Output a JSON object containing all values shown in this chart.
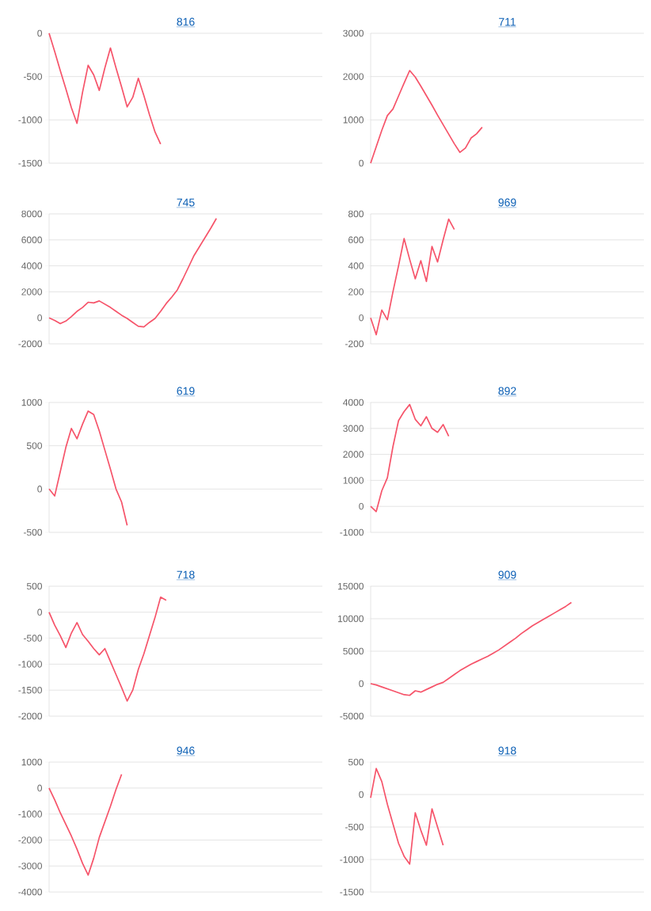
{
  "chart_data": [
    {
      "type": "line",
      "title": "816",
      "color": "#f6546a",
      "grid": "y",
      "ylim": [
        -1500,
        0
      ],
      "yticks": [
        -1500,
        -1000,
        -500,
        0
      ],
      "categories": [
        null,
        null,
        null,
        null,
        null,
        null,
        null,
        null,
        null,
        null,
        null,
        null,
        null,
        null,
        null,
        null,
        null,
        null,
        null,
        null,
        null,
        null,
        null,
        null,
        null,
        null,
        null,
        null,
        null,
        null,
        null,
        null,
        null,
        null,
        null,
        null,
        null,
        null,
        null,
        null,
        null,
        null,
        null,
        null,
        null,
        null,
        null,
        null,
        null,
        null
      ],
      "values": [
        0,
        -210,
        -430,
        -640,
        -860,
        -1040,
        -680,
        -370,
        -480,
        -660,
        -400,
        -170,
        -400,
        -620,
        -850,
        -740,
        -520,
        -720,
        -940,
        -1140,
        -1280,
        null,
        null,
        null,
        null,
        null,
        null,
        null,
        null,
        null,
        null,
        null,
        null,
        null,
        null,
        null,
        null,
        null,
        null,
        null,
        null,
        null,
        null,
        null,
        null,
        null,
        null,
        null,
        null,
        null
      ]
    },
    {
      "type": "line",
      "title": "711",
      "color": "#f6546a",
      "grid": "y",
      "ylim": [
        0,
        3000
      ],
      "yticks": [
        0,
        1000,
        2000,
        3000
      ],
      "categories": [
        null,
        null,
        null,
        null,
        null,
        null,
        null,
        null,
        null,
        null,
        null,
        null,
        null,
        null,
        null,
        null,
        null,
        null,
        null,
        null,
        null,
        null,
        null,
        null,
        null,
        null,
        null,
        null,
        null,
        null,
        null,
        null,
        null,
        null,
        null,
        null,
        null,
        null,
        null,
        null,
        null,
        null,
        null,
        null,
        null,
        null,
        null,
        null,
        null,
        null
      ],
      "values": [
        0,
        380,
        760,
        1100,
        1250,
        1550,
        1850,
        2140,
        1990,
        1780,
        1560,
        1340,
        1110,
        890,
        670,
        450,
        250,
        350,
        580,
        680,
        830,
        null,
        null,
        null,
        null,
        null,
        null,
        null,
        null,
        null,
        null,
        null,
        null,
        null,
        null,
        null,
        null,
        null,
        null,
        null,
        null,
        null,
        null,
        null,
        null,
        null,
        null,
        null,
        null,
        null
      ]
    },
    {
      "type": "line",
      "title": "745",
      "color": "#f6546a",
      "grid": "y",
      "ylim": [
        -2000,
        8000
      ],
      "yticks": [
        -2000,
        0,
        2000,
        4000,
        6000,
        8000
      ],
      "categories": [
        null,
        null,
        null,
        null,
        null,
        null,
        null,
        null,
        null,
        null,
        null,
        null,
        null,
        null,
        null,
        null,
        null,
        null,
        null,
        null,
        null,
        null,
        null,
        null,
        null,
        null,
        null,
        null,
        null,
        null,
        null,
        null,
        null,
        null,
        null,
        null,
        null,
        null,
        null,
        null,
        null,
        null,
        null,
        null,
        null,
        null,
        null,
        null,
        null,
        null
      ],
      "values": [
        0,
        -200,
        -450,
        -250,
        100,
        500,
        800,
        1200,
        1150,
        1300,
        1050,
        800,
        500,
        200,
        -50,
        -350,
        -650,
        -700,
        -350,
        -50,
        500,
        1100,
        1600,
        2150,
        3000,
        3900,
        4800,
        5500,
        6200,
        6900,
        7650,
        null,
        null,
        null,
        null,
        null,
        null,
        null,
        null,
        null,
        null,
        null,
        null,
        null,
        null,
        null,
        null,
        null,
        null,
        null
      ]
    },
    {
      "type": "line",
      "title": "969",
      "color": "#f6546a",
      "grid": "y",
      "ylim": [
        -200,
        800
      ],
      "yticks": [
        -200,
        0,
        200,
        400,
        600,
        800
      ],
      "categories": [
        null,
        null,
        null,
        null,
        null,
        null,
        null,
        null,
        null,
        null,
        null,
        null,
        null,
        null,
        null,
        null,
        null,
        null,
        null,
        null,
        null,
        null,
        null,
        null,
        null,
        null,
        null,
        null,
        null,
        null,
        null,
        null,
        null,
        null,
        null,
        null,
        null,
        null,
        null,
        null,
        null,
        null,
        null,
        null,
        null,
        null,
        null,
        null,
        null,
        null
      ],
      "values": [
        0,
        -130,
        60,
        -15,
        200,
        400,
        610,
        450,
        300,
        440,
        280,
        550,
        430,
        600,
        760,
        680,
        null,
        null,
        null,
        null,
        null,
        null,
        null,
        null,
        null,
        null,
        null,
        null,
        null,
        null,
        null,
        null,
        null,
        null,
        null,
        null,
        null,
        null,
        null,
        null,
        null,
        null,
        null,
        null,
        null,
        null,
        null,
        null,
        null,
        null
      ]
    },
    {
      "type": "line",
      "title": "619",
      "color": "#f6546a",
      "grid": "y",
      "ylim": [
        -500,
        1000
      ],
      "yticks": [
        -500,
        0,
        500,
        1000
      ],
      "categories": [
        null,
        null,
        null,
        null,
        null,
        null,
        null,
        null,
        null,
        null,
        null,
        null,
        null,
        null,
        null,
        null,
        null,
        null,
        null,
        null,
        null,
        null,
        null,
        null,
        null,
        null,
        null,
        null,
        null,
        null,
        null,
        null,
        null,
        null,
        null,
        null,
        null,
        null,
        null,
        null,
        null,
        null,
        null,
        null,
        null,
        null,
        null,
        null,
        null,
        null
      ],
      "values": [
        0,
        -80,
        200,
        480,
        700,
        580,
        750,
        900,
        860,
        670,
        450,
        230,
        0,
        -150,
        -420,
        null,
        null,
        null,
        null,
        null,
        null,
        null,
        null,
        null,
        null,
        null,
        null,
        null,
        null,
        null,
        null,
        null,
        null,
        null,
        null,
        null,
        null,
        null,
        null,
        null,
        null,
        null,
        null,
        null,
        null,
        null,
        null,
        null,
        null,
        null
      ]
    },
    {
      "type": "line",
      "title": "892",
      "color": "#f6546a",
      "grid": "y",
      "ylim": [
        -1000,
        4000
      ],
      "yticks": [
        -1000,
        0,
        1000,
        2000,
        3000,
        4000
      ],
      "categories": [
        null,
        null,
        null,
        null,
        null,
        null,
        null,
        null,
        null,
        null,
        null,
        null,
        null,
        null,
        null,
        null,
        null,
        null,
        null,
        null,
        null,
        null,
        null,
        null,
        null,
        null,
        null,
        null,
        null,
        null,
        null,
        null,
        null,
        null,
        null,
        null,
        null,
        null,
        null,
        null,
        null,
        null,
        null,
        null,
        null,
        null,
        null,
        null,
        null,
        null
      ],
      "values": [
        0,
        -200,
        600,
        1100,
        2300,
        3300,
        3650,
        3920,
        3350,
        3100,
        3450,
        3000,
        2850,
        3150,
        2700,
        null,
        null,
        null,
        null,
        null,
        null,
        null,
        null,
        null,
        null,
        null,
        null,
        null,
        null,
        null,
        null,
        null,
        null,
        null,
        null,
        null,
        null,
        null,
        null,
        null,
        null,
        null,
        null,
        null,
        null,
        null,
        null,
        null,
        null,
        null
      ]
    },
    {
      "type": "line",
      "title": "718",
      "color": "#f6546a",
      "grid": "y",
      "ylim": [
        -2000,
        500
      ],
      "yticks": [
        -2000,
        -1500,
        -1000,
        -500,
        0,
        500
      ],
      "categories": [
        null,
        null,
        null,
        null,
        null,
        null,
        null,
        null,
        null,
        null,
        null,
        null,
        null,
        null,
        null,
        null,
        null,
        null,
        null,
        null,
        null,
        null,
        null,
        null,
        null,
        null,
        null,
        null,
        null,
        null,
        null,
        null,
        null,
        null,
        null,
        null,
        null,
        null,
        null,
        null,
        null,
        null,
        null,
        null,
        null,
        null,
        null,
        null,
        null,
        null
      ],
      "values": [
        0,
        -250,
        -450,
        -680,
        -400,
        -200,
        -430,
        -560,
        -700,
        -820,
        -700,
        -950,
        -1200,
        -1450,
        -1710,
        -1500,
        -1100,
        -800,
        -450,
        -100,
        290,
        230,
        null,
        null,
        null,
        null,
        null,
        null,
        null,
        null,
        null,
        null,
        null,
        null,
        null,
        null,
        null,
        null,
        null,
        null,
        null,
        null,
        null,
        null,
        null,
        null,
        null,
        null,
        null,
        null
      ]
    },
    {
      "type": "line",
      "title": "909",
      "color": "#f6546a",
      "grid": "y",
      "ylim": [
        -5000,
        15000
      ],
      "yticks": [
        -5000,
        0,
        5000,
        10000,
        15000
      ],
      "categories": [
        null,
        null,
        null,
        null,
        null,
        null,
        null,
        null,
        null,
        null,
        null,
        null,
        null,
        null,
        null,
        null,
        null,
        null,
        null,
        null,
        null,
        null,
        null,
        null,
        null,
        null,
        null,
        null,
        null,
        null,
        null,
        null,
        null,
        null,
        null,
        null,
        null,
        null,
        null,
        null,
        null,
        null,
        null,
        null,
        null,
        null,
        null,
        null,
        null,
        null
      ],
      "values": [
        0,
        -200,
        -500,
        -800,
        -1100,
        -1400,
        -1700,
        -1800,
        -1100,
        -1300,
        -900,
        -500,
        -100,
        200,
        800,
        1400,
        2000,
        2500,
        3000,
        3400,
        3800,
        4200,
        4700,
        5200,
        5800,
        6400,
        7000,
        7700,
        8300,
        8900,
        9400,
        9900,
        10400,
        10900,
        11400,
        11900,
        12500,
        null,
        null,
        null,
        null,
        null,
        null,
        null,
        null,
        null,
        null,
        null,
        null,
        null
      ]
    },
    {
      "type": "line",
      "title": "946",
      "color": "#f6546a",
      "grid": "y",
      "ylim": [
        -4000,
        1000
      ],
      "yticks": [
        -4000,
        -3000,
        -2000,
        -1000,
        0,
        1000
      ],
      "categories": [
        null,
        null,
        null,
        null,
        null,
        null,
        null,
        null,
        null,
        null,
        null,
        null,
        null,
        null,
        null,
        null,
        null,
        null,
        null,
        null,
        null,
        null,
        null,
        null,
        null,
        null,
        null,
        null,
        null,
        null,
        null,
        null,
        null,
        null,
        null,
        null,
        null,
        null,
        null,
        null,
        null,
        null,
        null,
        null,
        null,
        null,
        null,
        null,
        null,
        null
      ],
      "values": [
        0,
        -450,
        -950,
        -1400,
        -1850,
        -2350,
        -2900,
        -3350,
        -2700,
        -1900,
        -1300,
        -700,
        -50,
        530,
        null,
        null,
        null,
        null,
        null,
        null,
        null,
        null,
        null,
        null,
        null,
        null,
        null,
        null,
        null,
        null,
        null,
        null,
        null,
        null,
        null,
        null,
        null,
        null,
        null,
        null,
        null,
        null,
        null,
        null,
        null,
        null,
        null,
        null,
        null,
        null
      ]
    },
    {
      "type": "line",
      "title": "918",
      "color": "#f6546a",
      "grid": "y",
      "ylim": [
        -1500,
        500
      ],
      "yticks": [
        -1500,
        -1000,
        -500,
        0,
        500
      ],
      "categories": [
        null,
        null,
        null,
        null,
        null,
        null,
        null,
        null,
        null,
        null,
        null,
        null,
        null,
        null,
        null,
        null,
        null,
        null,
        null,
        null,
        null,
        null,
        null,
        null,
        null,
        null,
        null,
        null,
        null,
        null,
        null,
        null,
        null,
        null,
        null,
        null,
        null,
        null,
        null,
        null,
        null,
        null,
        null,
        null,
        null,
        null,
        null,
        null,
        null,
        null
      ],
      "values": [
        -50,
        400,
        200,
        -150,
        -450,
        -750,
        -950,
        -1070,
        -280,
        -550,
        -780,
        -220,
        -500,
        -780,
        null,
        null,
        null,
        null,
        null,
        null,
        null,
        null,
        null,
        null,
        null,
        null,
        null,
        null,
        null,
        null,
        null,
        null,
        null,
        null,
        null,
        null,
        null,
        null,
        null,
        null,
        null,
        null,
        null,
        null,
        null,
        null,
        null,
        null,
        null,
        null
      ]
    }
  ]
}
